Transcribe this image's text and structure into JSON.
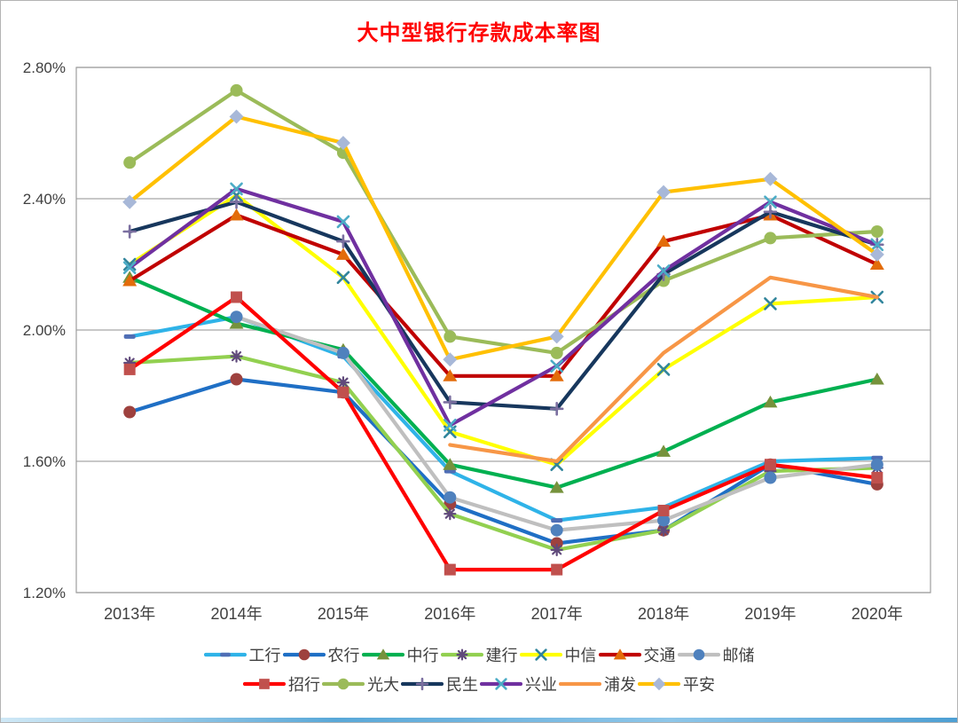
{
  "figure": {
    "title_color": "#FF0000",
    "axis_label_color": "#404040",
    "grid_color": "#A6A6A6",
    "border_color": "#9E9E9E"
  },
  "chart_data": {
    "type": "line",
    "title": "大中型银行存款成本率图",
    "categories": [
      "2013年",
      "2014年",
      "2015年",
      "2016年",
      "2017年",
      "2018年",
      "2019年",
      "2020年"
    ],
    "y_ticks": [
      "2.80%",
      "2.40%",
      "2.00%",
      "1.60%",
      "1.20%"
    ],
    "ylim": [
      1.2,
      2.8
    ],
    "y_step": 0.4,
    "grid": true,
    "legend_position": "bottom",
    "legend_rows": [
      7,
      6
    ],
    "series": [
      {
        "name": "工行",
        "color": "#2FB3E8",
        "marker": "dash",
        "marker_color": "#4F6EB5",
        "values": [
          1.98,
          2.04,
          1.92,
          1.57,
          1.42,
          1.46,
          1.6,
          1.61
        ]
      },
      {
        "name": "农行",
        "color": "#1F6FC5",
        "marker": "circle",
        "marker_color": "#9E413E",
        "values": [
          1.75,
          1.85,
          1.81,
          1.47,
          1.35,
          1.39,
          1.59,
          1.53
        ]
      },
      {
        "name": "中行",
        "color": "#00B050",
        "marker": "triangle",
        "marker_color": "#76923C",
        "values": [
          2.16,
          2.02,
          1.94,
          1.59,
          1.52,
          1.63,
          1.78,
          1.85
        ]
      },
      {
        "name": "建行",
        "color": "#92D050",
        "marker": "asterisk",
        "marker_color": "#604A7B",
        "values": [
          1.9,
          1.92,
          1.84,
          1.44,
          1.33,
          1.39,
          1.57,
          1.58
        ]
      },
      {
        "name": "中信",
        "color": "#FFFF00",
        "marker": "x",
        "marker_color": "#31859C",
        "values": [
          2.2,
          2.41,
          2.16,
          1.69,
          1.59,
          1.88,
          2.08,
          2.1
        ]
      },
      {
        "name": "交通",
        "color": "#C00000",
        "marker": "triangle",
        "marker_color": "#E36C0A",
        "values": [
          2.15,
          2.35,
          2.23,
          1.86,
          1.86,
          2.27,
          2.35,
          2.2
        ]
      },
      {
        "name": "邮储",
        "color": "#BFBFBF",
        "marker": "circle",
        "marker_color": "#4F81BD",
        "values": [
          null,
          2.04,
          1.93,
          1.49,
          1.39,
          1.42,
          1.55,
          1.59
        ]
      },
      {
        "name": "招行",
        "color": "#FF0000",
        "marker": "square",
        "marker_color": "#C0504D",
        "values": [
          1.88,
          2.1,
          1.81,
          1.27,
          1.27,
          1.45,
          1.59,
          1.55
        ]
      },
      {
        "name": "光大",
        "color": "#9BBB59",
        "marker": "circle",
        "marker_color": "#9BBB59",
        "values": [
          2.51,
          2.73,
          2.54,
          1.98,
          1.93,
          2.15,
          2.28,
          2.3
        ]
      },
      {
        "name": "民生",
        "color": "#17375D",
        "marker": "plus",
        "marker_color": "#7B6FA0",
        "values": [
          2.3,
          2.39,
          2.27,
          1.78,
          1.76,
          2.17,
          2.36,
          2.26
        ]
      },
      {
        "name": "兴业",
        "color": "#7030A0",
        "marker": "x",
        "marker_color": "#4BACC6",
        "values": [
          2.19,
          2.43,
          2.33,
          1.71,
          1.89,
          2.18,
          2.39,
          2.26
        ]
      },
      {
        "name": "浦发",
        "color": "#F79646",
        "marker": "none",
        "marker_color": "#F79646",
        "values": [
          null,
          null,
          null,
          1.65,
          1.6,
          1.93,
          2.16,
          2.1
        ]
      },
      {
        "name": "平安",
        "color": "#FFC000",
        "marker": "diamond",
        "marker_color": "#A8B8D8",
        "values": [
          2.39,
          2.65,
          2.57,
          1.91,
          1.98,
          2.42,
          2.46,
          2.23
        ]
      }
    ]
  }
}
